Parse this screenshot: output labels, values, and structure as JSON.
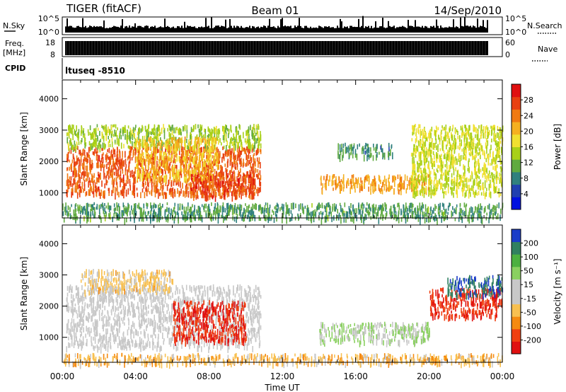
{
  "header": {
    "radar": "TIGER (fitACF)",
    "beam": "Beam 01",
    "date": "14/Sep/2010"
  },
  "strips": {
    "nsky_label": "N.Sky",
    "nsky_ticks_left": [
      "10^5",
      "10^0"
    ],
    "nsky_ticks_right": [
      "10^5",
      "10^0"
    ],
    "nsearch_label": "N.Search",
    "freq_label_1": "Freq.",
    "freq_label_2": "[MHz]",
    "freq_ticks": [
      "18",
      "8"
    ],
    "nave_ticks": [
      "60",
      "0"
    ],
    "nave_label": "Nave",
    "cpid_label": "CPID",
    "cpid_value": "ltuseq -8510"
  },
  "chart_data": [
    {
      "type": "heatmap",
      "title": "",
      "xlabel": "Time UT",
      "ylabel": "Slant Range [km]",
      "x_ticks": [
        "00:00",
        "04:00",
        "08:00",
        "12:00",
        "16:00",
        "20:00",
        "00:00"
      ],
      "xlim": [
        0,
        24
      ],
      "ylim": [
        200,
        4600
      ],
      "y_ticks": [
        "1000",
        "2000",
        "3000",
        "4000"
      ],
      "colorbar": {
        "label": "Power [dB]",
        "ticks": [
          "4",
          "8",
          "12",
          "16",
          "20",
          "24",
          "28"
        ],
        "range": [
          0,
          32
        ],
        "colors": [
          "#0010e0",
          "#203fb0",
          "#30807e",
          "#60aa40",
          "#a8d018",
          "#f0e030",
          "#f5b020",
          "#f07a12",
          "#e84010",
          "#e01010"
        ]
      },
      "regions": [
        {
          "t": [
            0.2,
            10.8
          ],
          "r": [
            1000,
            2500
          ],
          "value": 26
        },
        {
          "t": [
            0.2,
            10.8
          ],
          "r": [
            2500,
            3200
          ],
          "value": 14
        },
        {
          "t": [
            4.0,
            8.5
          ],
          "r": [
            1500,
            2800
          ],
          "value": 20
        },
        {
          "t": [
            7.0,
            10.5
          ],
          "r": [
            900,
            1700
          ],
          "value": 27
        },
        {
          "t": [
            14.0,
            20.0
          ],
          "r": [
            1100,
            1600
          ],
          "value": 22
        },
        {
          "t": [
            15.0,
            18.0
          ],
          "r": [
            2200,
            2600
          ],
          "value": 9
        },
        {
          "t": [
            19.0,
            24.0
          ],
          "r": [
            1000,
            3200
          ],
          "value": 16
        },
        {
          "t": [
            0.0,
            24.0
          ],
          "r": [
            200,
            700
          ],
          "value": 10
        }
      ]
    },
    {
      "type": "heatmap",
      "title": "",
      "xlabel": "Time UT",
      "ylabel": "Slant Range [km]",
      "x_ticks": [
        "00:00",
        "04:00",
        "08:00",
        "12:00",
        "16:00",
        "20:00",
        "00:00"
      ],
      "xlim": [
        0,
        24
      ],
      "ylim": [
        200,
        4600
      ],
      "y_ticks": [
        "1000",
        "2000",
        "3000",
        "4000"
      ],
      "colorbar": {
        "label": "Velocity [m s⁻¹]",
        "ticks": [
          "200",
          "100",
          "50",
          "15",
          "-15",
          "-50",
          "-100",
          "-200"
        ],
        "range": [
          -250,
          250
        ],
        "colors": [
          "#e01010",
          "#f04010",
          "#f58a10",
          "#f8c050",
          "#c8c8c8",
          "#c8c8c8",
          "#8ad060",
          "#4cb040",
          "#308060",
          "#1a3cc8"
        ]
      },
      "regions": [
        {
          "t": [
            0.2,
            10.8
          ],
          "r": [
            700,
            2700
          ],
          "value": 0
        },
        {
          "t": [
            1.0,
            6.0
          ],
          "r": [
            2500,
            3200
          ],
          "value": -60
        },
        {
          "t": [
            6.0,
            10.0
          ],
          "r": [
            900,
            2200
          ],
          "value": -200
        },
        {
          "t": [
            14.0,
            20.0
          ],
          "r": [
            900,
            1500
          ],
          "value": 50
        },
        {
          "t": [
            20.0,
            24.0
          ],
          "r": [
            1700,
            2600
          ],
          "value": -200
        },
        {
          "t": [
            21.0,
            24.0
          ],
          "r": [
            2400,
            3000
          ],
          "value": 200
        },
        {
          "t": [
            0.0,
            24.0
          ],
          "r": [
            200,
            500
          ],
          "value": -80
        }
      ]
    }
  ]
}
